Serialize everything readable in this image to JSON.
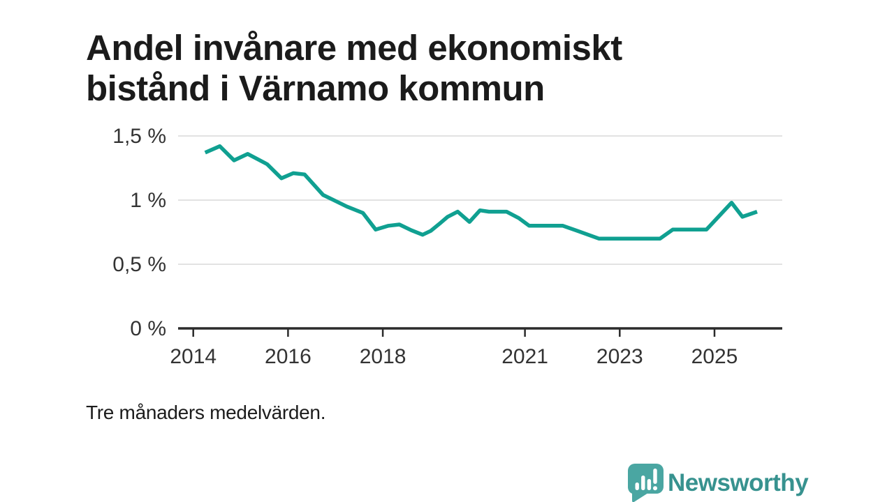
{
  "page": {
    "title": "Andel invånare med ekonomiskt bistånd i Värnamo kommun",
    "footnote": "Tre månaders medelvärden."
  },
  "branding": {
    "name": "Newsworthy",
    "icon": "newsworthy-speech-bubble-bar-chart-icon",
    "icon_color": "#4aa6a2",
    "wordmark_color": "#37928f"
  },
  "colors": {
    "line": "#10a091",
    "gridline": "#e2e2e2",
    "axis": "#2b2b2b",
    "axis_text": "#333333",
    "title_text": "#1b1b1b"
  },
  "chart_data": {
    "type": "line",
    "title": "Andel invånare med ekonomiskt bistånd i Värnamo kommun",
    "note": "Tre månaders medelvärden.",
    "unit": "%",
    "grid": true,
    "legend": "none",
    "xlim": [
      2013.68,
      2026.43
    ],
    "ylim": [
      0,
      1.5
    ],
    "x_ticks": [
      {
        "value": 2014,
        "label": "2014"
      },
      {
        "value": 2016,
        "label": "2016"
      },
      {
        "value": 2018,
        "label": "2018"
      },
      {
        "value": 2021,
        "label": "2021"
      },
      {
        "value": 2023,
        "label": "2023"
      },
      {
        "value": 2025,
        "label": "2025"
      }
    ],
    "y_ticks": [
      {
        "value": 0,
        "label": "0 %"
      },
      {
        "value": 0.5,
        "label": "0,5 %"
      },
      {
        "value": 1,
        "label": "1 %"
      },
      {
        "value": 1.5,
        "label": "1,5 %"
      }
    ],
    "series": [
      {
        "x": [
          2014.25,
          2014.56,
          2014.86,
          2015.15,
          2015.56,
          2015.86,
          2016.11,
          2016.35,
          2016.74,
          2016.91,
          2017.24,
          2017.58,
          2017.85,
          2018.12,
          2018.35,
          2018.6,
          2018.84,
          2019.01,
          2019.21,
          2019.37,
          2019.58,
          2019.83,
          2020.05,
          2020.24,
          2020.61,
          2020.87,
          2021.09,
          2021.55,
          2021.8,
          2022.11,
          2022.56,
          2023.19,
          2023.85,
          2024.12,
          2024.83,
          2025.36,
          2025.59,
          2025.9
        ],
        "values": [
          1.37,
          1.42,
          1.31,
          1.36,
          1.28,
          1.17,
          1.21,
          1.2,
          1.04,
          1.01,
          0.95,
          0.9,
          0.77,
          0.8,
          0.81,
          0.765,
          0.73,
          0.76,
          0.82,
          0.87,
          0.91,
          0.83,
          0.92,
          0.91,
          0.91,
          0.86,
          0.8,
          0.8,
          0.8,
          0.76,
          0.7,
          0.7,
          0.7,
          0.77,
          0.77,
          0.98,
          0.87,
          0.91
        ]
      }
    ]
  }
}
